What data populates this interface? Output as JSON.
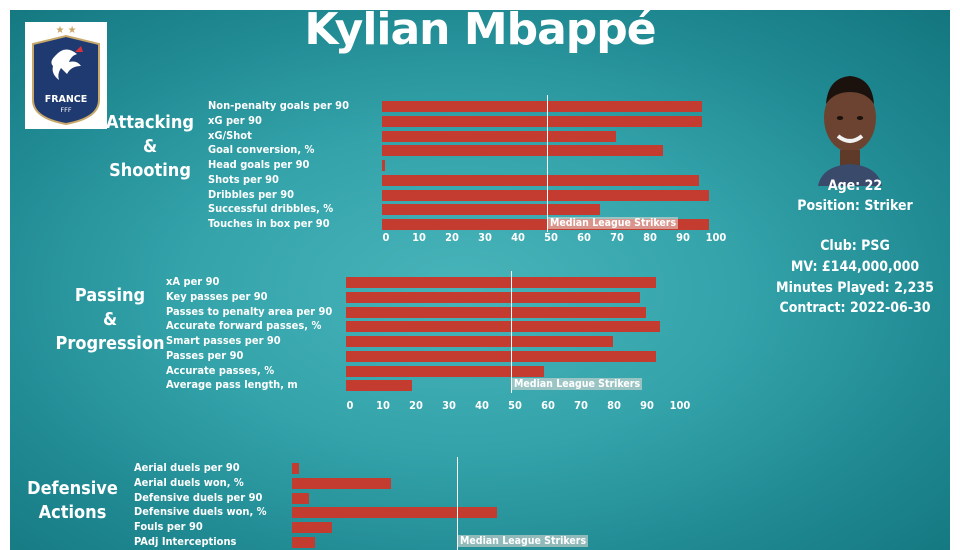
{
  "title": "Kylian Mbappé",
  "badge": {
    "country": "FRANCE",
    "federation": "FFF",
    "stars": "★ ★"
  },
  "player": {
    "age": "Age: 22",
    "position": "Position: Striker",
    "club": "Club: PSG",
    "mv": "MV: £144,000,000",
    "minutes": "Minutes Played: 2,235",
    "contract": "Contract: 2022-06-30"
  },
  "colors": {
    "bar": "#c43c2f",
    "background": "#34a3aa",
    "text": "#ffffff"
  },
  "chart_data": [
    {
      "type": "bar",
      "orientation": "horizontal",
      "section_label": [
        "Attacking",
        "&",
        "Shooting"
      ],
      "categories": [
        "Non-penalty goals per 90",
        "xG per 90",
        "xG/Shot",
        "Goal conversion, %",
        "Head goals per 90",
        "Shots per 90",
        "Dribbles per 90",
        "Successful dribbles, %",
        "Touches in box per 90"
      ],
      "values": [
        97,
        97,
        71,
        85,
        1,
        96,
        99,
        66,
        99
      ],
      "xlim": [
        0,
        100
      ],
      "xticks": [
        "0",
        "10",
        "20",
        "30",
        "40",
        "50",
        "60",
        "70",
        "80",
        "90",
        "100"
      ],
      "median": 50,
      "median_label": "Median League Strikers"
    },
    {
      "type": "bar",
      "orientation": "horizontal",
      "section_label": [
        "Passing",
        "&",
        "Progression"
      ],
      "categories": [
        "xA per 90",
        "Key passes per 90",
        "Passes to penalty area per 90",
        "Accurate forward passes, %",
        "Smart passes per 90",
        "Passes per 90",
        "Accurate passes, %",
        "Average pass length, m"
      ],
      "values": [
        94,
        89,
        91,
        95,
        81,
        94,
        60,
        20
      ],
      "xlim": [
        0,
        100
      ],
      "xticks": [
        "0",
        "10",
        "20",
        "30",
        "40",
        "50",
        "60",
        "70",
        "80",
        "90",
        "100"
      ],
      "median": 50,
      "median_label": "Median League Strikers"
    },
    {
      "type": "bar",
      "orientation": "horizontal",
      "section_label": [
        "Defensive",
        "Actions"
      ],
      "categories": [
        "Aerial duels per 90",
        "Aerial duels won, %",
        "Defensive duels per 90",
        "Defensive duels won, %",
        "Fouls per 90",
        "PAdj Interceptions"
      ],
      "values": [
        2,
        30,
        5,
        62,
        12,
        7
      ],
      "xlim": [
        0,
        100
      ],
      "median": 50,
      "median_label": "Median League Strikers"
    }
  ]
}
